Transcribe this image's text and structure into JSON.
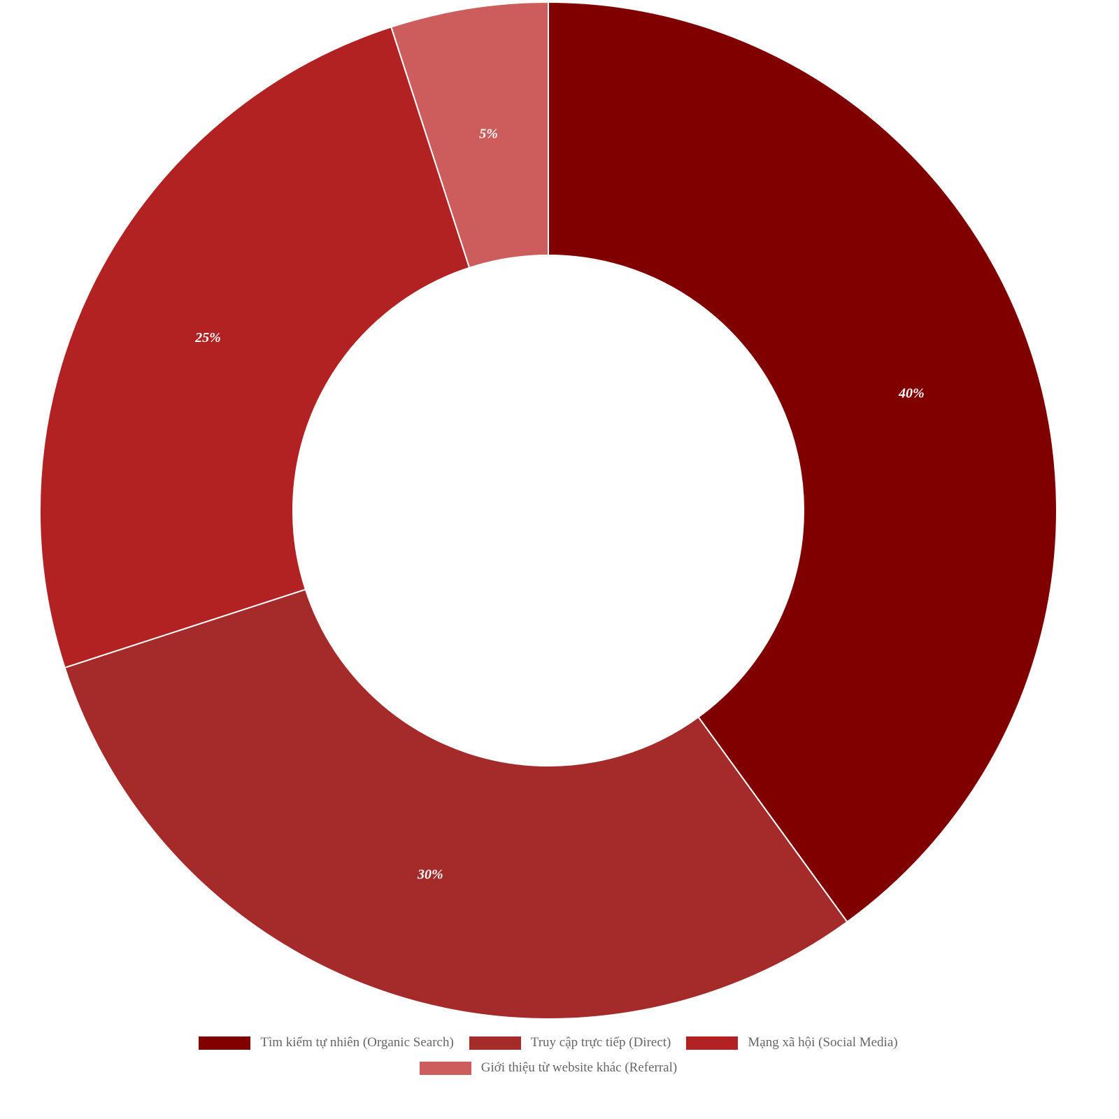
{
  "chart_data": {
    "type": "pie",
    "variant": "donut",
    "categories": [
      "Tìm kiếm tự nhiên (Organic Search)",
      "Truy cập trực tiếp (Direct)",
      "Mạng xã hội (Social Media)",
      "Giới thiệu từ website khác (Referral)"
    ],
    "values": [
      40,
      30,
      25,
      5
    ],
    "data_labels": [
      "40%",
      "30%",
      "25%",
      "5%"
    ],
    "colors": [
      "#800000",
      "#A52A2A",
      "#B22222",
      "#CD5C5C"
    ],
    "legend_position": "bottom"
  }
}
